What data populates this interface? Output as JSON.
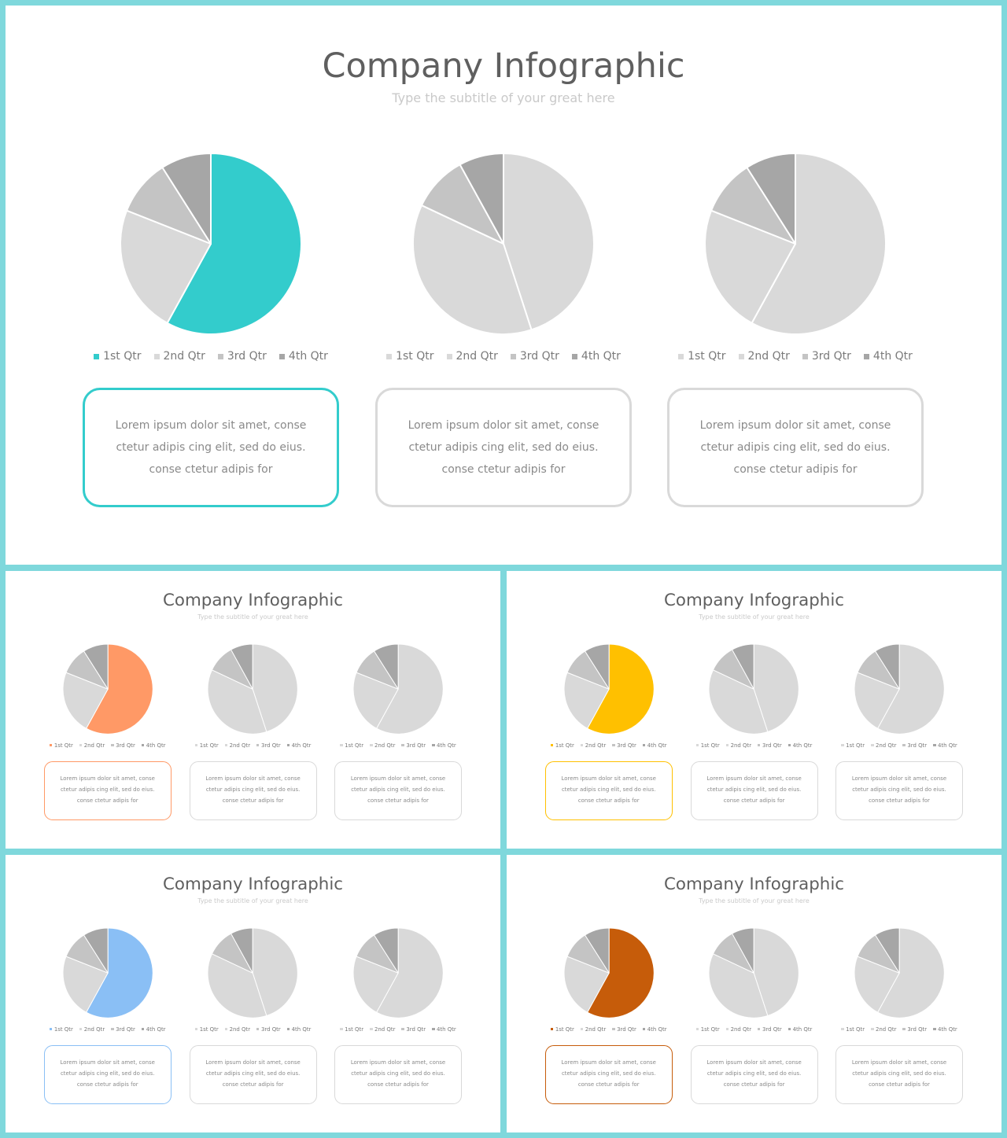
{
  "colors": {
    "frame": "#7fd8dc",
    "slide_background": "#ffffff",
    "title_text": "#5f5f5f",
    "subtitle_text": "#c9c9c9",
    "slice_2nd": "#d9d9d9",
    "slice_3rd": "#c4c4c4",
    "slice_4th": "#a6a6a6",
    "box_border_neutral": "#d9d9d9"
  },
  "slides": [
    {
      "title": "Company Infographic",
      "subtitle": "Type the subtitle of your great here",
      "accent": "#33cccc",
      "charts": [
        {
          "chart_data": {
            "type": "pie",
            "categories": [
              "1st Qtr",
              "2nd Qtr",
              "3rd Qtr",
              "4th Qtr"
            ],
            "values": [
              58,
              23,
              10,
              9
            ],
            "highlight": true
          },
          "text": [
            "Lorem ipsum dolor sit amet, conse",
            "ctetur adipis cing elit, sed do eius.",
            "conse ctetur adipis for"
          ]
        },
        {
          "chart_data": {
            "type": "pie",
            "categories": [
              "1st Qtr",
              "2nd Qtr",
              "3rd Qtr",
              "4th Qtr"
            ],
            "values": [
              45,
              37,
              10,
              8
            ],
            "highlight": false
          },
          "text": [
            "Lorem ipsum dolor sit amet, conse",
            "ctetur adipis cing elit, sed do eius.",
            "conse ctetur adipis for"
          ]
        },
        {
          "chart_data": {
            "type": "pie",
            "categories": [
              "1st Qtr",
              "2nd Qtr",
              "3rd Qtr",
              "4th Qtr"
            ],
            "values": [
              58,
              23,
              10,
              9
            ],
            "highlight": false
          },
          "text": [
            "Lorem ipsum dolor sit amet, conse",
            "ctetur adipis cing elit, sed do eius.",
            "conse ctetur adipis for"
          ]
        }
      ]
    },
    {
      "title": "Company Infographic",
      "subtitle": "Type the subtitle of your great here",
      "accent": "#ff9966",
      "charts": [
        {
          "chart_data": {
            "type": "pie",
            "categories": [
              "1st Qtr",
              "2nd Qtr",
              "3rd Qtr",
              "4th Qtr"
            ],
            "values": [
              58,
              23,
              10,
              9
            ],
            "highlight": true
          },
          "text": [
            "Lorem ipsum dolor sit amet, conse",
            "ctetur adipis cing elit, sed do eius.",
            "conse ctetur adipis for"
          ]
        },
        {
          "chart_data": {
            "type": "pie",
            "categories": [
              "1st Qtr",
              "2nd Qtr",
              "3rd Qtr",
              "4th Qtr"
            ],
            "values": [
              45,
              37,
              10,
              8
            ],
            "highlight": false
          },
          "text": [
            "Lorem ipsum dolor sit amet, conse",
            "ctetur adipis cing elit, sed do eius.",
            "conse ctetur adipis for"
          ]
        },
        {
          "chart_data": {
            "type": "pie",
            "categories": [
              "1st Qtr",
              "2nd Qtr",
              "3rd Qtr",
              "4th Qtr"
            ],
            "values": [
              58,
              23,
              10,
              9
            ],
            "highlight": false
          },
          "text": [
            "Lorem ipsum dolor sit amet, conse",
            "ctetur adipis cing elit, sed do eius.",
            "conse ctetur adipis for"
          ]
        }
      ]
    },
    {
      "title": "Company Infographic",
      "subtitle": "Type the subtitle of your great here",
      "accent": "#ffc000",
      "charts": [
        {
          "chart_data": {
            "type": "pie",
            "categories": [
              "1st Qtr",
              "2nd Qtr",
              "3rd Qtr",
              "4th Qtr"
            ],
            "values": [
              58,
              23,
              10,
              9
            ],
            "highlight": true
          },
          "text": [
            "Lorem ipsum dolor sit amet, conse",
            "ctetur adipis cing elit, sed do eius.",
            "conse ctetur adipis for"
          ]
        },
        {
          "chart_data": {
            "type": "pie",
            "categories": [
              "1st Qtr",
              "2nd Qtr",
              "3rd Qtr",
              "4th Qtr"
            ],
            "values": [
              45,
              37,
              10,
              8
            ],
            "highlight": false
          },
          "text": [
            "Lorem ipsum dolor sit amet, conse",
            "ctetur adipis cing elit, sed do eius.",
            "conse ctetur adipis for"
          ]
        },
        {
          "chart_data": {
            "type": "pie",
            "categories": [
              "1st Qtr",
              "2nd Qtr",
              "3rd Qtr",
              "4th Qtr"
            ],
            "values": [
              58,
              23,
              10,
              9
            ],
            "highlight": false
          },
          "text": [
            "Lorem ipsum dolor sit amet, conse",
            "ctetur adipis cing elit, sed do eius.",
            "conse ctetur adipis for"
          ]
        }
      ]
    },
    {
      "title": "Company Infographic",
      "subtitle": "Type the subtitle of your great here",
      "accent": "#8abff5",
      "charts": [
        {
          "chart_data": {
            "type": "pie",
            "categories": [
              "1st Qtr",
              "2nd Qtr",
              "3rd Qtr",
              "4th Qtr"
            ],
            "values": [
              58,
              23,
              10,
              9
            ],
            "highlight": true
          },
          "text": [
            "Lorem ipsum dolor sit amet, conse",
            "ctetur adipis cing elit, sed do eius.",
            "conse ctetur adipis for"
          ]
        },
        {
          "chart_data": {
            "type": "pie",
            "categories": [
              "1st Qtr",
              "2nd Qtr",
              "3rd Qtr",
              "4th Qtr"
            ],
            "values": [
              45,
              37,
              10,
              8
            ],
            "highlight": false
          },
          "text": [
            "Lorem ipsum dolor sit amet, conse",
            "ctetur adipis cing elit, sed do eius.",
            "conse ctetur adipis for"
          ]
        },
        {
          "chart_data": {
            "type": "pie",
            "categories": [
              "1st Qtr",
              "2nd Qtr",
              "3rd Qtr",
              "4th Qtr"
            ],
            "values": [
              58,
              23,
              10,
              9
            ],
            "highlight": false
          },
          "text": [
            "Lorem ipsum dolor sit amet, conse",
            "ctetur adipis cing elit, sed do eius.",
            "conse ctetur adipis for"
          ]
        }
      ]
    },
    {
      "title": "Company Infographic",
      "subtitle": "Type the subtitle of your great here",
      "accent": "#c65c0a",
      "charts": [
        {
          "chart_data": {
            "type": "pie",
            "categories": [
              "1st Qtr",
              "2nd Qtr",
              "3rd Qtr",
              "4th Qtr"
            ],
            "values": [
              58,
              23,
              10,
              9
            ],
            "highlight": true
          },
          "text": [
            "Lorem ipsum dolor sit amet, conse",
            "ctetur adipis cing elit, sed do eius.",
            "conse ctetur adipis for"
          ]
        },
        {
          "chart_data": {
            "type": "pie",
            "categories": [
              "1st Qtr",
              "2nd Qtr",
              "3rd Qtr",
              "4th Qtr"
            ],
            "values": [
              45,
              37,
              10,
              8
            ],
            "highlight": false
          },
          "text": [
            "Lorem ipsum dolor sit amet, conse",
            "ctetur adipis cing elit, sed do eius.",
            "conse ctetur adipis for"
          ]
        },
        {
          "chart_data": {
            "type": "pie",
            "categories": [
              "1st Qtr",
              "2nd Qtr",
              "3rd Qtr",
              "4th Qtr"
            ],
            "values": [
              58,
              23,
              10,
              9
            ],
            "highlight": false
          },
          "text": [
            "Lorem ipsum dolor sit amet, conse",
            "ctetur adipis cing elit, sed do eius.",
            "conse ctetur adipis for"
          ]
        }
      ]
    }
  ]
}
